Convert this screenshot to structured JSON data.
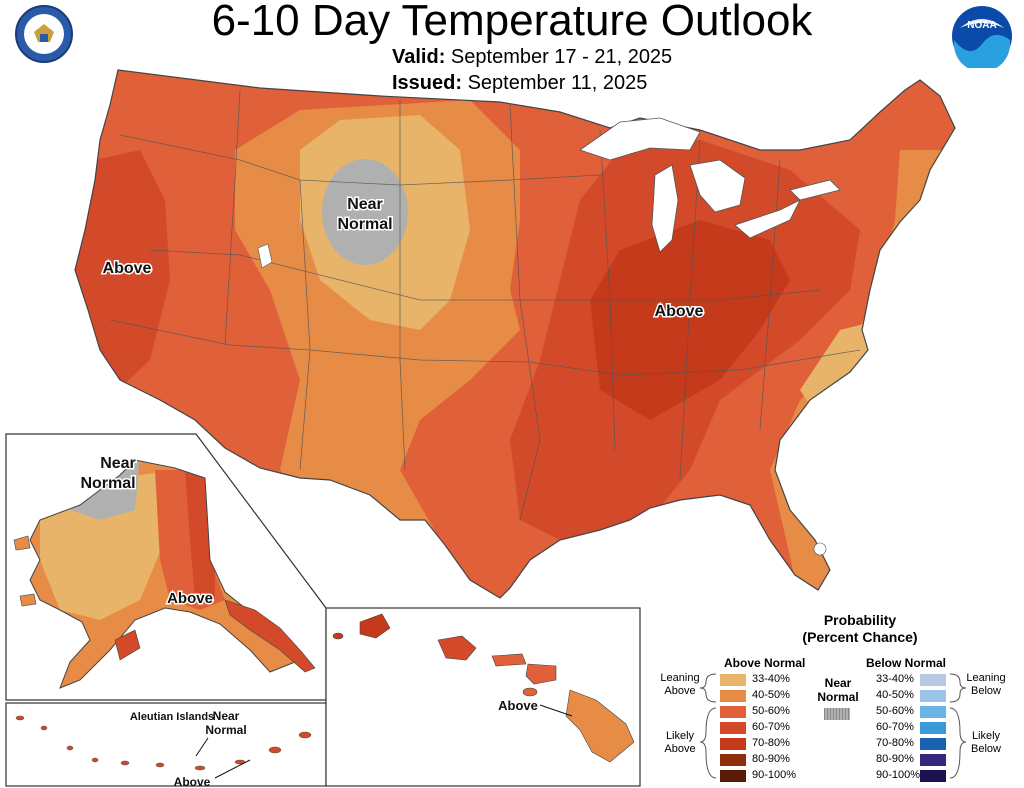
{
  "header": {
    "title": "6-10 Day Temperature Outlook",
    "valid_label": "Valid:",
    "valid_value": "September 17 - 21, 2025",
    "issued_label": "Issued:",
    "issued_value": "September 11, 2025",
    "noaa_logo_text": "NOAA"
  },
  "map_labels": {
    "near_normal_top": "Near",
    "near_normal_bottom": "Normal",
    "above_west": "Above",
    "above_east": "Above",
    "ak_near_top": "Near",
    "ak_near_bottom": "Normal",
    "ak_above": "Above",
    "aleutian_title": "Aleutian Islands",
    "aleutian_near_top": "Near",
    "aleutian_near_bottom": "Normal",
    "aleutian_above": "Above",
    "hawaii_above": "Above"
  },
  "legend": {
    "title_line1": "Probability",
    "title_line2": "(Percent Chance)",
    "above_head": "Above Normal",
    "below_head": "Below Normal",
    "near_head_1": "Near",
    "near_head_2": "Normal",
    "leaning_above_1": "Leaning",
    "leaning_above_2": "Above",
    "likely_above_1": "Likely",
    "likely_above_2": "Above",
    "leaning_below_1": "Leaning",
    "leaning_below_2": "Below",
    "likely_below_1": "Likely",
    "likely_below_2": "Below",
    "above": [
      {
        "range": "33-40%",
        "color": "#e8b46a"
      },
      {
        "range": "40-50%",
        "color": "#e68c46"
      },
      {
        "range": "50-60%",
        "color": "#e0603a"
      },
      {
        "range": "60-70%",
        "color": "#d24a2a"
      },
      {
        "range": "70-80%",
        "color": "#c43a1a"
      },
      {
        "range": "80-90%",
        "color": "#8c2e0a"
      },
      {
        "range": "90-100%",
        "color": "#5a1c08"
      }
    ],
    "below": [
      {
        "range": "33-40%",
        "color": "#b8c8e0"
      },
      {
        "range": "40-50%",
        "color": "#9cc4e8"
      },
      {
        "range": "50-60%",
        "color": "#6ab4e4"
      },
      {
        "range": "60-70%",
        "color": "#3a9ad8"
      },
      {
        "range": "70-80%",
        "color": "#1a62b0"
      },
      {
        "range": "80-90%",
        "color": "#34287c"
      },
      {
        "range": "90-100%",
        "color": "#1c1050"
      }
    ],
    "near_color": "#a0a0a0"
  },
  "colors": {
    "c40_50": "#e68c46",
    "c33_40": "#e8b46a",
    "c50_60": "#e0603a",
    "c60_70": "#d24a2a",
    "c70_80": "#c43a1a",
    "near": "#b0b0b0",
    "lake": "#ffffff",
    "border": "#555555"
  }
}
